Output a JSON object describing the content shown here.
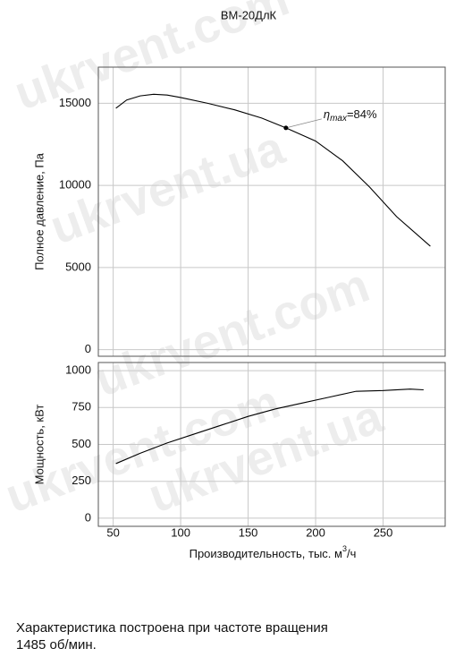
{
  "chart_data": [
    {
      "type": "line",
      "title": "ВМ-20ДлК",
      "ylabel": "Полное давление, Па",
      "x": [
        52,
        60,
        70,
        80,
        90,
        100,
        120,
        140,
        160,
        178,
        200,
        220,
        240,
        260,
        285
      ],
      "series": [
        {
          "color": "#000000",
          "values": [
            14700,
            15200,
            15450,
            15550,
            15500,
            15350,
            15000,
            14600,
            14100,
            13500,
            12700,
            11500,
            9900,
            8100,
            6300
          ]
        }
      ],
      "xlim": [
        39,
        296
      ],
      "xticks": [
        50,
        100,
        150,
        200,
        250
      ],
      "ylim": [
        -400,
        17200
      ],
      "yticks": [
        0,
        5000,
        10000,
        15000
      ],
      "grid": true,
      "annotation": {
        "symbol": "η",
        "subscript": "max",
        "text": "=84%",
        "x": 178,
        "y": 13500
      }
    },
    {
      "type": "line",
      "ylabel": "Мощность, кВт",
      "xlabel": [
        "Производительность, тыс. м",
        "3",
        "/ч"
      ],
      "x": [
        52,
        70,
        90,
        110,
        130,
        150,
        170,
        190,
        210,
        230,
        250,
        270,
        280
      ],
      "series": [
        {
          "color": "#000000",
          "values": [
            370,
            440,
            510,
            570,
            630,
            690,
            740,
            780,
            820,
            860,
            865,
            875,
            870
          ]
        }
      ],
      "xlim": [
        39,
        296
      ],
      "xticks": [
        50,
        100,
        150,
        200,
        250
      ],
      "ylim": [
        -55,
        1055
      ],
      "yticks": [
        0,
        250,
        500,
        750,
        1000
      ],
      "grid": true
    }
  ],
  "footnote": [
    "Характеристика построена при частоте вращения",
    "1485 об/мин."
  ],
  "watermarks": [
    "ukrvent.com",
    "ukrvent.ua",
    "ukrvent.com",
    "ukrvent.ua",
    "ukrvent.com"
  ]
}
